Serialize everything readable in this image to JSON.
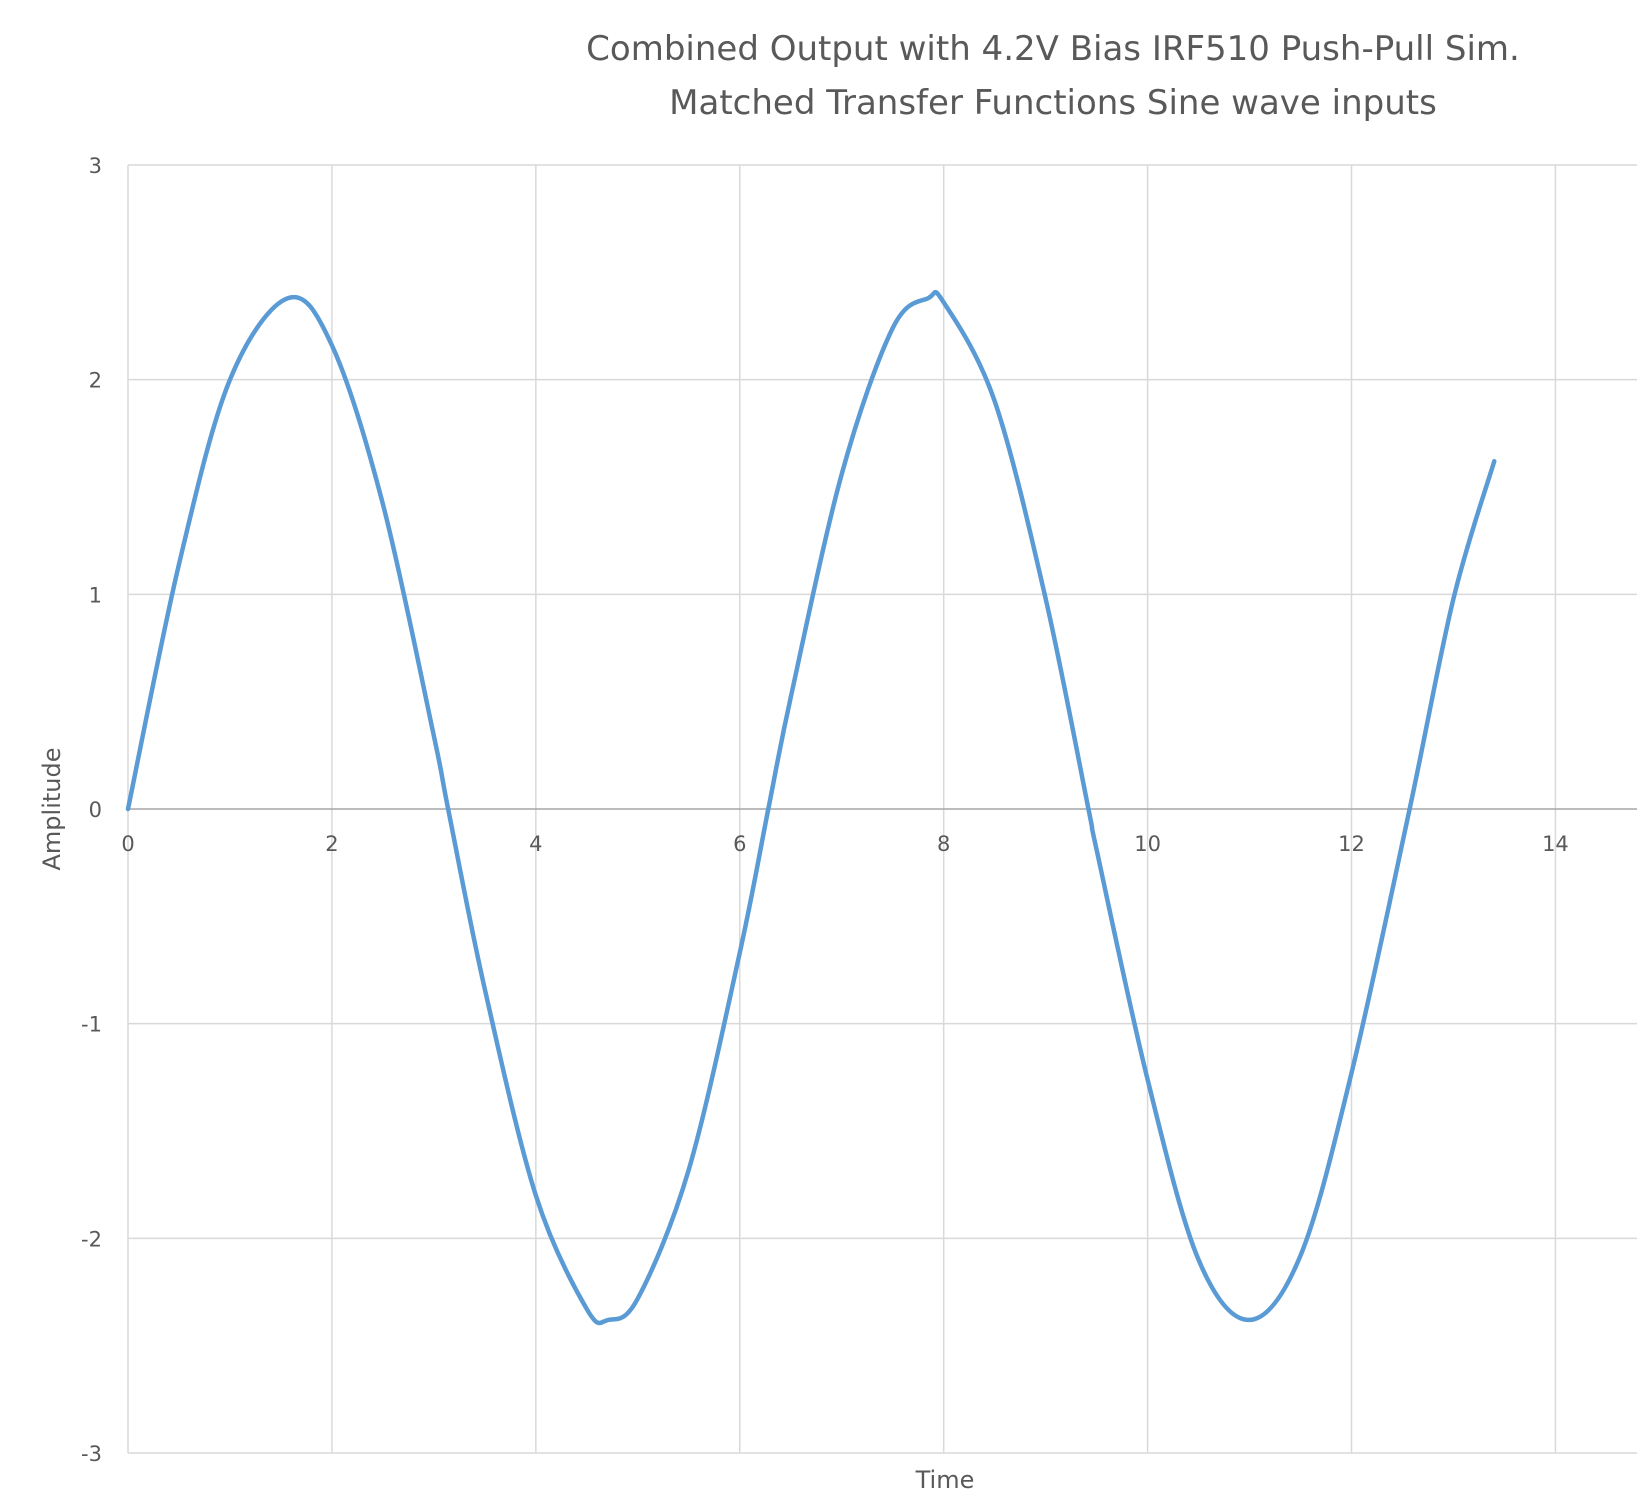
{
  "chart_data": {
    "type": "line",
    "title": "Combined Output with 4.2V Bias IRF510 Push-Pull Sim.",
    "subtitle": "Matched Transfer Functions Sine wave inputs",
    "xlabel": "Time",
    "ylabel": "Amplitude",
    "xlim": [
      0,
      14.8
    ],
    "ylim": [
      -3,
      3
    ],
    "x_ticks": [
      "0",
      "2",
      "4",
      "6",
      "8",
      "10",
      "12",
      "14"
    ],
    "y_ticks": [
      "3",
      "2",
      "1",
      "0",
      "-1",
      "-2",
      "-3"
    ],
    "grid": true,
    "legend": "none",
    "series": [
      {
        "color": "#5b9bd5",
        "x": [
          0,
          0.5,
          1.0,
          1.57,
          2.0,
          2.5,
          3.0,
          3.14,
          3.5,
          4.0,
          4.5,
          4.71,
          5.0,
          5.5,
          6.0,
          6.28,
          6.5,
          7.0,
          7.5,
          7.85,
          8.0,
          8.5,
          9.0,
          9.42,
          9.5,
          10.0,
          10.5,
          11.0,
          11.5,
          12.0,
          12.57,
          13.0,
          13.4
        ],
        "y": [
          0,
          1.14,
          2.0,
          2.38,
          2.16,
          1.42,
          0.34,
          0,
          -0.84,
          -1.8,
          -2.33,
          -2.38,
          -2.28,
          -1.68,
          -0.67,
          0,
          0.52,
          1.56,
          2.24,
          2.38,
          2.36,
          1.9,
          0.98,
          0,
          -0.19,
          -1.26,
          -2.1,
          -2.38,
          -2.08,
          -1.23,
          0,
          0.98,
          1.62
        ]
      }
    ]
  }
}
